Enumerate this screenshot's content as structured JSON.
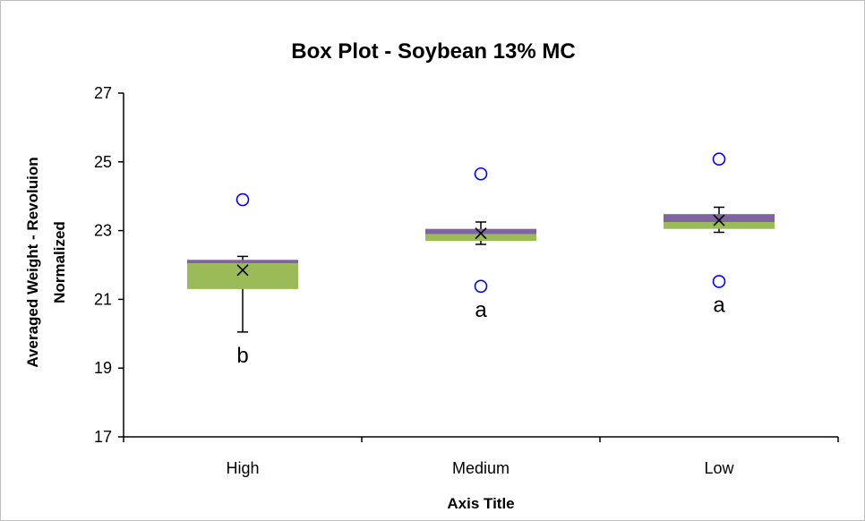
{
  "chart_data": {
    "type": "box",
    "title": "Box Plot - Soybean 13% MC",
    "xlabel": "Axis Title",
    "ylabel_lines": [
      "Averaged Weight - Revoluion",
      "Normalized"
    ],
    "ylim": [
      17,
      27
    ],
    "yticks": [
      17,
      19,
      21,
      23,
      25,
      27
    ],
    "categories": [
      "High",
      "Medium",
      "Low"
    ],
    "colors": {
      "lower_box": "#9bbb59",
      "upper_box": "#8064a2",
      "outlier": "#0000ff",
      "axis": "#000000"
    },
    "boxes": [
      {
        "category": "High",
        "whisker_low": 20.05,
        "q1": 21.3,
        "median": 22.05,
        "q3": 22.15,
        "whisker_high": 22.25,
        "mean": 21.85,
        "outliers": [
          23.9
        ],
        "letter": "b"
      },
      {
        "category": "Medium",
        "whisker_low": 22.6,
        "q1": 22.7,
        "median": 22.9,
        "q3": 23.05,
        "whisker_high": 23.25,
        "mean": 22.92,
        "outliers": [
          24.65,
          21.38
        ],
        "letter": "a"
      },
      {
        "category": "Low",
        "whisker_low": 22.95,
        "q1": 23.05,
        "median": 23.25,
        "q3": 23.48,
        "whisker_high": 23.68,
        "mean": 23.3,
        "outliers": [
          25.08,
          21.52
        ],
        "letter": "a"
      }
    ]
  }
}
